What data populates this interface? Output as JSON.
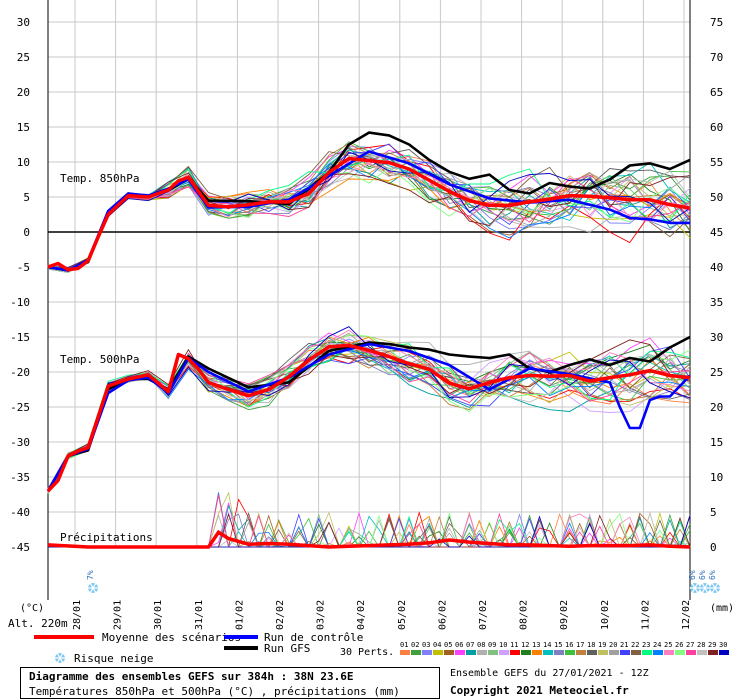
{
  "chart_data": {
    "type": "line",
    "left_axis": {
      "label": "(°C)",
      "ticks": [
        30,
        25,
        20,
        15,
        10,
        5,
        0,
        -5,
        -10,
        -15,
        -20,
        -25,
        -30,
        -35,
        -40,
        -45
      ]
    },
    "right_axis": {
      "label": "(mm)",
      "ticks": [
        75,
        70,
        65,
        60,
        55,
        50,
        45,
        40,
        35,
        30,
        25,
        20,
        15,
        10,
        5,
        0
      ]
    },
    "x_ticks": [
      "28/01",
      "29/01",
      "30/01",
      "31/01",
      "01/02",
      "02/02",
      "03/02",
      "04/02",
      "05/02",
      "06/02",
      "07/02",
      "08/02",
      "09/02",
      "10/02",
      "11/02",
      "12/02"
    ],
    "x_hours": [
      0,
      384
    ],
    "grid": true,
    "altitude_label": "Alt. 220m",
    "panel_labels": {
      "t850": "Temp. 850hPa",
      "t500": "Temp. 500hPa",
      "precip": "Précipitations"
    },
    "series": [
      {
        "name": "Moyenne des scénarios",
        "color": "#ff0000",
        "t850_hours": [
          0,
          6,
          12,
          18,
          24,
          30,
          36,
          48,
          60,
          72,
          78,
          84,
          90,
          96,
          108,
          120,
          132,
          144,
          156,
          168,
          180,
          192,
          204,
          216,
          228,
          240,
          252,
          264,
          276,
          288,
          300,
          312,
          324,
          336,
          348,
          360,
          372,
          384
        ],
        "t850": [
          -5.0,
          -4.5,
          -5.4,
          -5.2,
          -4.1,
          -0.7,
          2.5,
          5.2,
          5.0,
          6.0,
          7.3,
          7.8,
          5.8,
          3.8,
          3.6,
          3.9,
          4.3,
          4.3,
          5.5,
          8.5,
          10.5,
          10.2,
          9.9,
          9.0,
          7.4,
          5.8,
          4.5,
          3.8,
          3.8,
          4.3,
          4.7,
          5.2,
          5.1,
          4.9,
          4.6,
          4.6,
          3.9,
          3.4
        ],
        "t500_hours": [
          0,
          6,
          12,
          18,
          24,
          30,
          36,
          48,
          60,
          72,
          78,
          84,
          90,
          96,
          108,
          120,
          132,
          144,
          156,
          168,
          180,
          192,
          204,
          216,
          228,
          240,
          252,
          264,
          276,
          288,
          300,
          312,
          324,
          336,
          348,
          360,
          372,
          384
        ],
        "t500": [
          -37.0,
          -35.5,
          -32.0,
          -31.3,
          -30.8,
          -26.4,
          -22.0,
          -21.0,
          -20.4,
          -22.8,
          -17.5,
          -18.1,
          -19.6,
          -21.5,
          -22.5,
          -23.4,
          -22.5,
          -20.7,
          -18.3,
          -16.4,
          -16.2,
          -16.9,
          -17.8,
          -18.8,
          -19.6,
          -21.6,
          -22.4,
          -21.5,
          -20.8,
          -20.5,
          -20.6,
          -20.5,
          -21.3,
          -20.8,
          -20.4,
          -19.8,
          -20.5,
          -20.8
        ],
        "precip_hours": [
          0,
          24,
          60,
          72,
          96,
          102,
          108,
          120,
          132,
          144,
          156,
          168,
          180,
          192,
          204,
          216,
          228,
          240,
          252,
          264,
          276,
          288,
          300,
          312,
          324,
          336,
          348,
          360,
          372,
          384
        ],
        "precip": [
          0.3,
          0,
          0,
          0,
          0,
          2.1,
          1.2,
          0.4,
          0.5,
          0.4,
          0.2,
          0,
          0.1,
          0.2,
          0.3,
          0.4,
          0.6,
          1.0,
          0.7,
          0.5,
          0.3,
          0.3,
          0.2,
          0.1,
          0.2,
          0.2,
          0.2,
          0.3,
          0.1,
          0
        ]
      },
      {
        "name": "Run de contrôle",
        "color": "#0000ff",
        "t850_hours": [
          0,
          12,
          24,
          36,
          48,
          60,
          72,
          84,
          96,
          120,
          144,
          168,
          192,
          216,
          240,
          264,
          288,
          312,
          336,
          348,
          360,
          372,
          384
        ],
        "t850": [
          -5.0,
          -5.5,
          -4.0,
          3.0,
          5.5,
          5.2,
          6.2,
          7.5,
          3.5,
          3.6,
          4.6,
          8.0,
          11.5,
          9.8,
          6.8,
          4.8,
          4.2,
          4.6,
          3.2,
          2.0,
          1.8,
          1.3,
          1.3
        ],
        "t500_hours": [
          0,
          12,
          24,
          36,
          48,
          60,
          72,
          84,
          96,
          120,
          144,
          168,
          192,
          216,
          240,
          264,
          288,
          312,
          336,
          342,
          348,
          354,
          360,
          366,
          372,
          384
        ],
        "t500": [
          -37.0,
          -32.0,
          -31.0,
          -23.0,
          -21.2,
          -20.8,
          -23.0,
          -18.0,
          -20.0,
          -22.8,
          -20.8,
          -17.5,
          -16.0,
          -17.0,
          -19.0,
          -22.5,
          -19.5,
          -20.3,
          -21.5,
          -25.0,
          -28.0,
          -28.0,
          -24.0,
          -23.5,
          -23.5,
          -20.5
        ]
      },
      {
        "name": "Run GFS",
        "color": "#000000",
        "t850_hours": [
          0,
          12,
          24,
          36,
          48,
          60,
          72,
          84,
          96,
          120,
          144,
          168,
          180,
          192,
          204,
          216,
          228,
          240,
          252,
          264,
          276,
          288,
          300,
          312,
          324,
          336,
          348,
          360,
          372,
          384
        ],
        "t850": [
          -5.0,
          -5.5,
          -4.3,
          2.8,
          5.5,
          5.1,
          6.0,
          7.6,
          4.5,
          4.4,
          4.0,
          8.5,
          12.5,
          14.2,
          13.8,
          12.5,
          10.3,
          8.6,
          7.6,
          8.2,
          6.0,
          5.5,
          7.0,
          6.5,
          6.2,
          7.5,
          9.5,
          9.8,
          9.0,
          10.3
        ],
        "t500_hours": [
          0,
          12,
          24,
          36,
          48,
          60,
          72,
          84,
          96,
          120,
          144,
          168,
          192,
          204,
          216,
          228,
          240,
          252,
          264,
          276,
          288,
          300,
          312,
          324,
          336,
          348,
          360,
          372,
          384
        ],
        "t500": [
          -37.0,
          -32.0,
          -31.2,
          -22.5,
          -21.0,
          -21.0,
          -22.5,
          -17.8,
          -19.5,
          -22.2,
          -21.5,
          -17.0,
          -15.8,
          -16.0,
          -16.5,
          -16.8,
          -17.5,
          -17.8,
          -18.0,
          -17.5,
          -19.5,
          -20.0,
          -19.0,
          -18.2,
          -19.0,
          -18.0,
          -18.5,
          -16.5,
          -15.0
        ]
      }
    ],
    "perturbations_label": "30 Perts.",
    "perturbation_ids": [
      "01",
      "02",
      "03",
      "04",
      "05",
      "06",
      "07",
      "08",
      "09",
      "10",
      "11",
      "12",
      "13",
      "14",
      "15",
      "16",
      "17",
      "18",
      "19",
      "20",
      "21",
      "22",
      "23",
      "24",
      "25",
      "26",
      "27",
      "28",
      "29",
      "30"
    ],
    "perturbation_colors": [
      "#ff8040",
      "#40a040",
      "#8080ff",
      "#c0c000",
      "#a06020",
      "#ff40ff",
      "#00a0a0",
      "#b0b0b0",
      "#80c080",
      "#d0a0ff",
      "#ff0000",
      "#208020",
      "#ff8000",
      "#00c0c0",
      "#8080c0",
      "#40c040",
      "#c08040",
      "#606060",
      "#c0c060",
      "#a0a0a0",
      "#4040ff",
      "#806040",
      "#00ff80",
      "#0080ff",
      "#ff80c0",
      "#80ff80",
      "#ff40a0",
      "#c0c0c0",
      "#802020",
      "#0000c0"
    ],
    "snow_risk": {
      "label": "Risque neige",
      "markers": [
        {
          "hour": 6,
          "text": "7%"
        },
        {
          "hour": 366,
          "text": "6%"
        },
        {
          "hour": 372,
          "text": "6%"
        },
        {
          "hour": 378,
          "text": "6%"
        }
      ]
    },
    "footer": {
      "title": "Diagramme des ensembles GEFS sur 384h : 38N 23.6E",
      "subtitle": "Températures 850hPa et 500hPa (°C) , précipitations (mm)",
      "run": "Ensemble GEFS du 27/01/2021 - 12Z",
      "copyright": "Copyright 2021 Meteociel.fr"
    }
  }
}
